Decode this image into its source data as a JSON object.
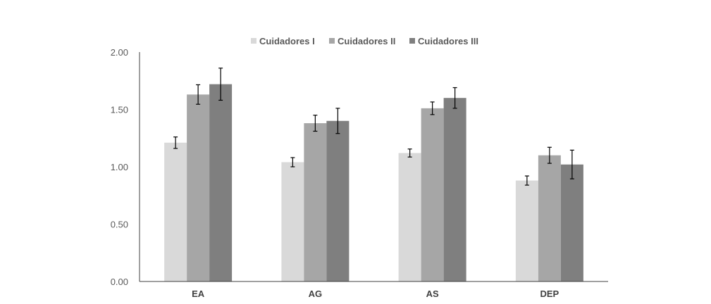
{
  "chart_data": {
    "type": "bar",
    "categories": [
      "EA",
      "AG",
      "AS",
      "DEP"
    ],
    "series": [
      {
        "name": "Cuidadores I",
        "color": "#d9d9d9",
        "values": [
          1.21,
          1.04,
          1.12,
          0.88
        ],
        "errors": [
          0.05,
          0.04,
          0.035,
          0.04
        ]
      },
      {
        "name": "Cuidadores II",
        "color": "#a6a6a6",
        "values": [
          1.63,
          1.38,
          1.51,
          1.1
        ],
        "errors": [
          0.085,
          0.07,
          0.055,
          0.07
        ]
      },
      {
        "name": "Cuidadores III",
        "color": "#7f7f7f",
        "values": [
          1.72,
          1.4,
          1.6,
          1.02
        ],
        "errors": [
          0.14,
          0.11,
          0.09,
          0.125
        ]
      }
    ],
    "yticks": [
      "0.00",
      "0.50",
      "1.00",
      "1.50",
      "2.00"
    ],
    "ylim": [
      0,
      2
    ],
    "legend_position": "top-center",
    "grid": false
  }
}
